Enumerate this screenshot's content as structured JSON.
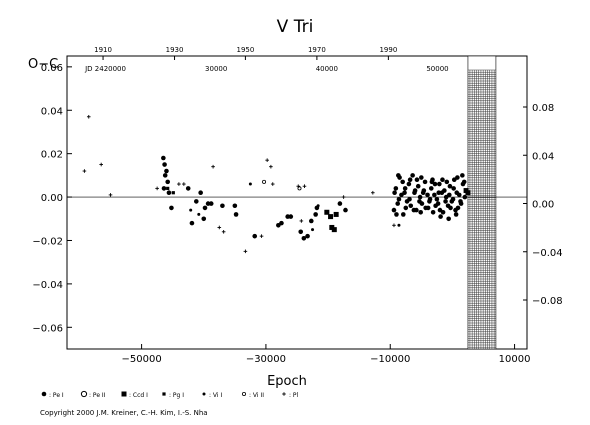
{
  "chart_data": {
    "type": "scatter",
    "title": "V  Tri",
    "xlabel": "Epoch",
    "ylabel": "O−C",
    "xlim": [
      -62000,
      12000
    ],
    "ylim": [
      -0.07,
      0.065
    ],
    "grid": false,
    "x_ticks": [
      -50000,
      -30000,
      -10000,
      10000
    ],
    "x_tick_labels": [
      "−50000",
      "−30000",
      "−10000",
      "10000"
    ],
    "y_ticks": [
      -0.06,
      -0.04,
      -0.02,
      0.0,
      0.02,
      0.04,
      0.06
    ],
    "y_tick_labels": [
      "−0.06",
      "−0.04",
      "−0.02",
      "0.00",
      "0.02",
      "0.04",
      "0.06"
    ],
    "right_y_ticks": [
      -0.08,
      -0.04,
      0.0,
      0.04,
      0.08
    ],
    "right_y_tick_labels": [
      "−0.08",
      "−0.04",
      "0.00",
      "0.04",
      "0.08"
    ],
    "top_year_ticks": [
      {
        "epoch": -56200,
        "label": "1910"
      },
      {
        "epoch": -44700,
        "label": "1930"
      },
      {
        "epoch": -33300,
        "label": "1950"
      },
      {
        "epoch": -21800,
        "label": "1970"
      },
      {
        "epoch": -10300,
        "label": "1990"
      }
    ],
    "jd_ticks": [
      {
        "epoch": -55800,
        "label": "JD 2420000"
      },
      {
        "epoch": -38000,
        "label": "30000"
      },
      {
        "epoch": -20200,
        "label": "40000"
      },
      {
        "epoch": -2400,
        "label": "50000"
      }
    ],
    "predicted_region": {
      "from_epoch": 2500,
      "to_epoch": 7000
    },
    "series": [
      {
        "name": "Pe I",
        "marker": "dot",
        "points": [
          [
            -46500,
            0.018
          ],
          [
            -46300,
            0.015
          ],
          [
            -46000,
            0.012
          ],
          [
            -46200,
            0.01
          ],
          [
            -45800,
            0.007
          ],
          [
            -46400,
            0.004
          ],
          [
            -45600,
            0.002
          ],
          [
            -45200,
            -0.005
          ],
          [
            -42500,
            0.004
          ],
          [
            -41900,
            -0.012
          ],
          [
            -40500,
            0.002
          ],
          [
            -39800,
            -0.005
          ],
          [
            -39300,
            -0.003
          ],
          [
            -38800,
            -0.003
          ],
          [
            -41200,
            -0.002
          ],
          [
            -40000,
            -0.01
          ],
          [
            -37000,
            -0.004
          ],
          [
            -35000,
            -0.004
          ],
          [
            -34800,
            -0.008
          ],
          [
            -31800,
            -0.018
          ],
          [
            -28000,
            -0.013
          ],
          [
            -27500,
            -0.012
          ],
          [
            -26500,
            -0.009
          ],
          [
            -26000,
            -0.009
          ],
          [
            -24400,
            -0.016
          ],
          [
            -23900,
            -0.019
          ],
          [
            -23300,
            -0.018
          ],
          [
            -22700,
            -0.011
          ],
          [
            -22000,
            -0.008
          ],
          [
            -21800,
            -0.005
          ],
          [
            -18100,
            -0.003
          ],
          [
            -17200,
            -0.006
          ],
          [
            -9400,
            -0.006
          ],
          [
            -9100,
            0.004
          ],
          [
            -8800,
            -0.003
          ],
          [
            -8500,
            0.009
          ],
          [
            -8200,
            0.001
          ],
          [
            -7900,
            -0.008
          ],
          [
            -7600,
            0.004
          ],
          [
            -7300,
            -0.002
          ],
          [
            -7000,
            0.006
          ],
          [
            -6700,
            -0.004
          ],
          [
            -6400,
            0.01
          ],
          [
            -6100,
            0.002
          ],
          [
            -5800,
            -0.006
          ],
          [
            -5500,
            0.005
          ],
          [
            -5200,
            0.0
          ],
          [
            -4900,
            -0.003
          ],
          [
            -4600,
            0.003
          ],
          [
            -4300,
            -0.005
          ],
          [
            -4000,
            0.001
          ],
          [
            -3700,
            -0.002
          ],
          [
            -3400,
            0.004
          ],
          [
            -3100,
            -0.007
          ],
          [
            -2800,
            0.006
          ],
          [
            -2500,
            -0.001
          ],
          [
            -2200,
            0.002
          ],
          [
            -1900,
            -0.009
          ],
          [
            -1600,
            0.008
          ],
          [
            -1300,
            0.003
          ],
          [
            -1000,
            0.0
          ],
          [
            -700,
            -0.004
          ],
          [
            -400,
            0.005
          ],
          [
            -100,
            -0.002
          ],
          [
            200,
            0.004
          ],
          [
            500,
            -0.006
          ],
          [
            800,
            0.009
          ],
          [
            1100,
            0.001
          ],
          [
            1400,
            -0.003
          ],
          [
            1700,
            0.006
          ],
          [
            2000,
            0.0
          ],
          [
            -9000,
            -0.008
          ],
          [
            -8000,
            0.007
          ],
          [
            -7500,
            -0.005
          ],
          [
            -6800,
            0.008
          ],
          [
            -6200,
            -0.006
          ],
          [
            -5700,
            0.008
          ],
          [
            -5100,
            -0.007
          ],
          [
            -4400,
            0.007
          ],
          [
            -3900,
            -0.005
          ],
          [
            -3300,
            0.007
          ],
          [
            -2700,
            -0.004
          ],
          [
            -2100,
            0.006
          ],
          [
            -1500,
            -0.007
          ],
          [
            -900,
            0.007
          ],
          [
            -300,
            -0.005
          ],
          [
            300,
            0.008
          ],
          [
            900,
            -0.005
          ],
          [
            -9300,
            0.002
          ],
          [
            -8600,
            -0.001
          ],
          [
            -7700,
            0.002
          ],
          [
            -6900,
            -0.001
          ],
          [
            -6000,
            0.003
          ],
          [
            -5300,
            -0.002
          ],
          [
            -4700,
            0.002
          ],
          [
            -3600,
            -0.001
          ],
          [
            -2900,
            0.001
          ],
          [
            -2300,
            -0.003
          ],
          [
            -1700,
            0.002
          ],
          [
            -1100,
            -0.002
          ],
          [
            -500,
            0.001
          ],
          [
            100,
            -0.001
          ],
          [
            700,
            0.002
          ],
          [
            1300,
            -0.002
          ],
          [
            1600,
            0.01
          ],
          [
            1900,
            0.007
          ],
          [
            -8700,
            0.01
          ],
          [
            -5000,
            0.009
          ],
          [
            -3200,
            0.008
          ],
          [
            -2000,
            -0.006
          ],
          [
            -600,
            -0.01
          ],
          [
            600,
            -0.008
          ]
        ]
      },
      {
        "name": "Pe II",
        "marker": "circle",
        "points": []
      },
      {
        "name": "Ccd I",
        "marker": "square",
        "points": [
          [
            -20200,
            -0.007
          ],
          [
            -19600,
            -0.009
          ],
          [
            -19400,
            -0.014
          ],
          [
            -19000,
            -0.015
          ],
          [
            -18700,
            -0.008
          ],
          [
            2500,
            0.002
          ],
          [
            2200,
            0.003
          ]
        ]
      },
      {
        "name": "Pg I",
        "marker": "small-square",
        "points": [
          [
            -45800,
            0.004
          ],
          [
            -44900,
            0.002
          ]
        ]
      },
      {
        "name": "Vi I",
        "marker": "small-dot",
        "points": [
          [
            -42100,
            -0.006
          ],
          [
            -40800,
            -0.008
          ],
          [
            -32500,
            0.006
          ],
          [
            -22500,
            -0.015
          ],
          [
            -21600,
            -0.004
          ],
          [
            -8600,
            -0.013
          ]
        ]
      },
      {
        "name": "Vi II",
        "marker": "open-small",
        "points": [
          [
            -30300,
            0.007
          ],
          [
            -24600,
            0.004
          ]
        ]
      },
      {
        "name": "Pl",
        "marker": "plus",
        "points": [
          [
            -58500,
            0.037
          ],
          [
            -56500,
            0.015
          ],
          [
            -55000,
            0.001
          ],
          [
            -59200,
            0.012
          ],
          [
            -47500,
            0.004
          ],
          [
            -44000,
            0.006
          ],
          [
            -43200,
            0.006
          ],
          [
            -38500,
            0.014
          ],
          [
            -37500,
            -0.014
          ],
          [
            -36800,
            -0.016
          ],
          [
            -33300,
            -0.025
          ],
          [
            -30700,
            -0.018
          ],
          [
            -29800,
            0.017
          ],
          [
            -29200,
            0.014
          ],
          [
            -28900,
            0.006
          ],
          [
            -24800,
            0.005
          ],
          [
            -24300,
            -0.011
          ],
          [
            -23800,
            0.005
          ],
          [
            -12800,
            0.002
          ],
          [
            -9400,
            -0.013
          ],
          [
            -17500,
            0.0
          ]
        ]
      }
    ],
    "legend": [
      {
        "marker": "dot",
        "label": ": Pe I"
      },
      {
        "marker": "circle",
        "label": ": Pe II"
      },
      {
        "marker": "square",
        "label": ": Ccd I"
      },
      {
        "marker": "small-square",
        "label": ": Pg I"
      },
      {
        "marker": "small-dot",
        "label": ": Vi I"
      },
      {
        "marker": "open-small",
        "label": ": Vi II"
      },
      {
        "marker": "plus",
        "label": ": Pl"
      }
    ],
    "copyright": "Copyright 2000 J.M. Kreiner, C.-H. Kim, I.-S. Nha"
  }
}
